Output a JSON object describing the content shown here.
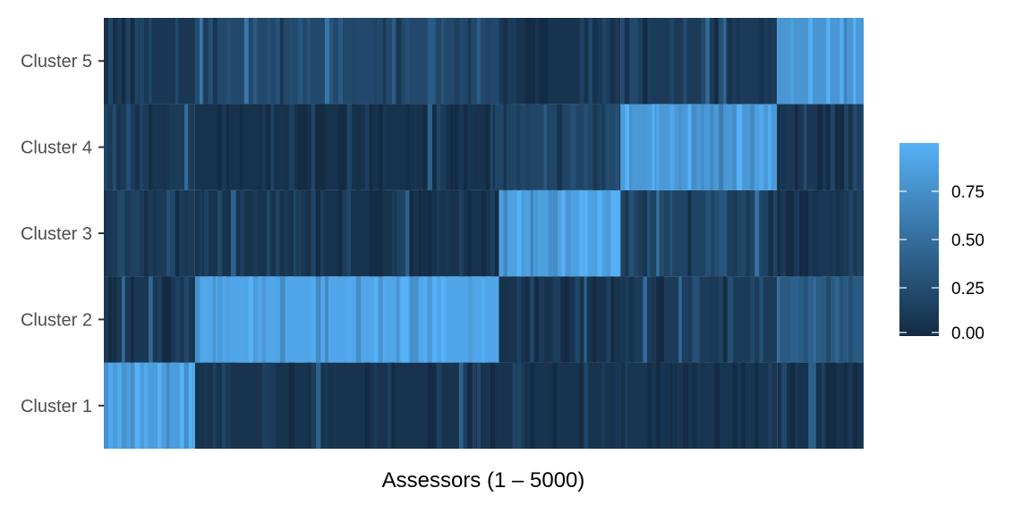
{
  "chart_data": {
    "type": "heatmap",
    "title": "",
    "xlabel": "Assessors (1 – 5000)",
    "ylabel": "",
    "x_range": [
      1,
      5000
    ],
    "rows": [
      "Cluster 1",
      "Cluster 2",
      "Cluster 3",
      "Cluster 4",
      "Cluster 5"
    ],
    "color_scale": {
      "low_color": "#132B43",
      "high_color": "#56B1F7",
      "range": [
        0,
        1
      ],
      "ticks": [
        0.0,
        0.25,
        0.5,
        0.75
      ],
      "tick_labels": [
        "0.00",
        "0.25",
        "0.50",
        "0.75"
      ]
    },
    "assessor_groups": [
      {
        "assessors": [
          1,
          600
        ],
        "high_cluster": "Cluster 1"
      },
      {
        "assessors": [
          601,
          2600
        ],
        "high_cluster": "Cluster 2"
      },
      {
        "assessors": [
          2601,
          3400
        ],
        "high_cluster": "Cluster 3"
      },
      {
        "assessors": [
          3401,
          4430
        ],
        "high_cluster": "Cluster 4"
      },
      {
        "assessors": [
          4431,
          5000
        ],
        "high_cluster": "Cluster 5"
      }
    ],
    "block_mean_values": [
      {
        "assessors": [
          1,
          600
        ],
        "Cluster 1": 0.85,
        "Cluster 2": 0.1,
        "Cluster 3": 0.12,
        "Cluster 4": 0.12,
        "Cluster 5": 0.1
      },
      {
        "assessors": [
          601,
          2600
        ],
        "Cluster 1": 0.06,
        "Cluster 2": 0.92,
        "Cluster 3": 0.06,
        "Cluster 4": 0.05,
        "Cluster 5": 0.22
      },
      {
        "assessors": [
          2601,
          3400
        ],
        "Cluster 1": 0.06,
        "Cluster 2": 0.06,
        "Cluster 3": 0.88,
        "Cluster 4": 0.2,
        "Cluster 5": 0.06
      },
      {
        "assessors": [
          3401,
          4430
        ],
        "Cluster 1": 0.08,
        "Cluster 2": 0.12,
        "Cluster 3": 0.18,
        "Cluster 4": 0.82,
        "Cluster 5": 0.12
      },
      {
        "assessors": [
          4431,
          5000
        ],
        "Cluster 1": 0.05,
        "Cluster 2": 0.35,
        "Cluster 3": 0.1,
        "Cluster 4": 0.1,
        "Cluster 5": 0.8
      }
    ],
    "legend_position": "right",
    "grid": false
  }
}
